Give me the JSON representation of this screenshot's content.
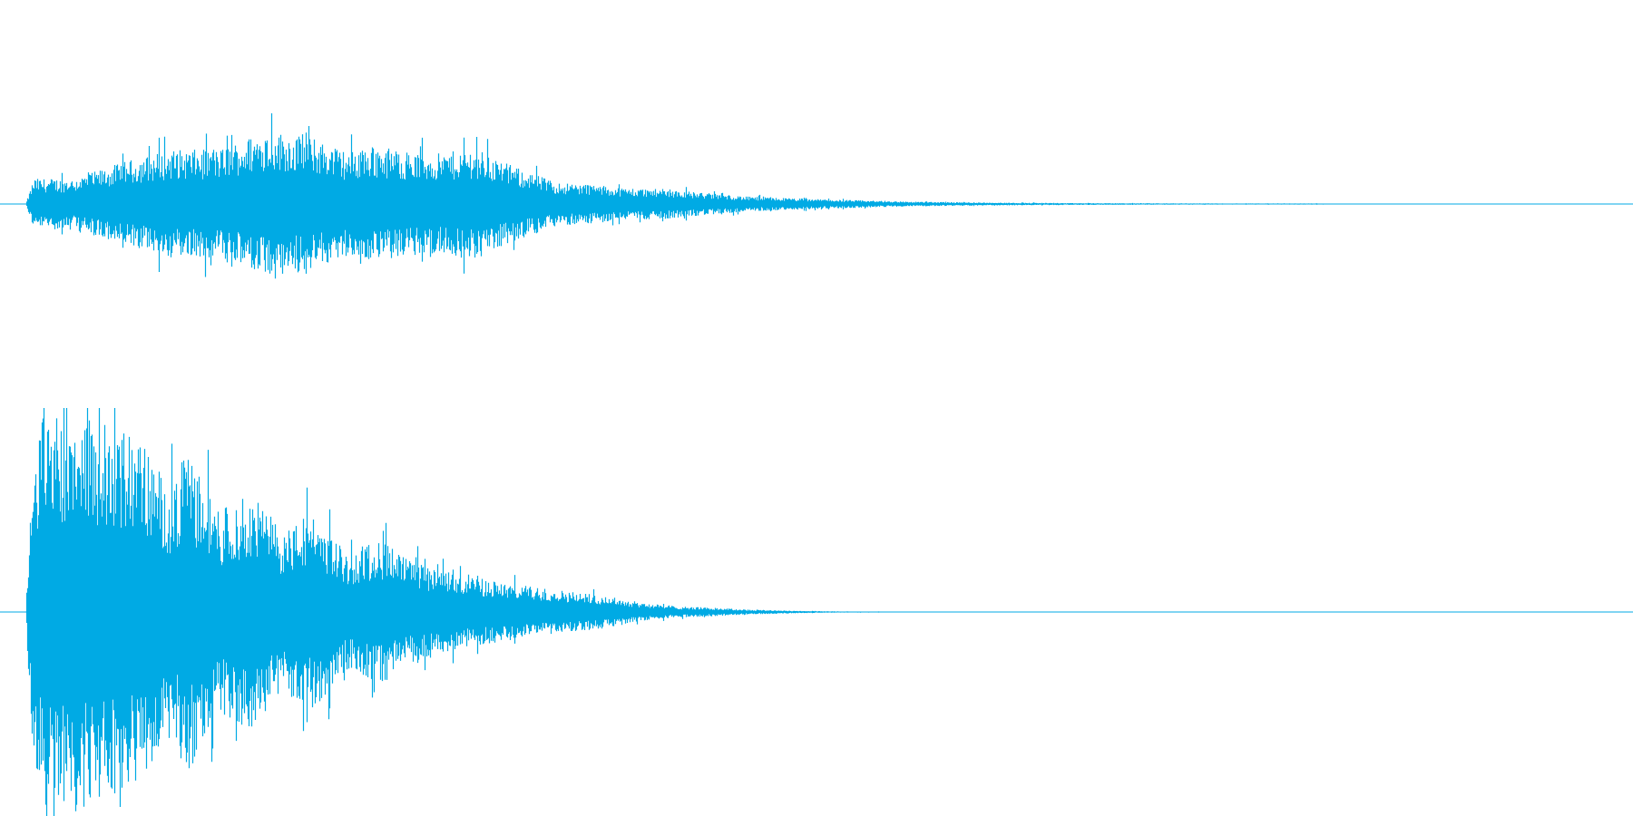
{
  "chart_data": {
    "type": "area",
    "title": "",
    "xlabel": "",
    "ylabel": "",
    "color": "#00aae4",
    "grid": false,
    "legend": "none",
    "xlim": [
      0,
      1
    ],
    "ylim": [
      -1,
      1
    ],
    "series": [
      {
        "channel": 1,
        "envelope_x": [
          0.0,
          0.005,
          0.03,
          0.06,
          0.09,
          0.12,
          0.15,
          0.18,
          0.2,
          0.22,
          0.25,
          0.28,
          0.3,
          0.33,
          0.35,
          0.37,
          0.4,
          0.45,
          0.5,
          0.55,
          0.6,
          0.65,
          0.7,
          0.75,
          0.8,
          0.85,
          0.88,
          0.9,
          0.92,
          0.95,
          1.0
        ],
        "envelope_amp": [
          0.0,
          0.14,
          0.14,
          0.23,
          0.3,
          0.3,
          0.41,
          0.36,
          0.29,
          0.32,
          0.27,
          0.31,
          0.22,
          0.12,
          0.11,
          0.09,
          0.08,
          0.04,
          0.025,
          0.013,
          0.008,
          0.005,
          0.004,
          0.003,
          0.003,
          0.002,
          0.002,
          0.001,
          0.0,
          0.0,
          0.0
        ]
      },
      {
        "channel": 2,
        "envelope_x": [
          0.0,
          0.003,
          0.01,
          0.03,
          0.05,
          0.07,
          0.09,
          0.1,
          0.12,
          0.14,
          0.16,
          0.18,
          0.2,
          0.22,
          0.24,
          0.26,
          0.28,
          0.3,
          0.33,
          0.36,
          0.38,
          0.4,
          0.43,
          0.45,
          0.48,
          0.5,
          0.55,
          0.6,
          0.65,
          1.0
        ],
        "envelope_amp": [
          0.0,
          0.55,
          0.98,
          0.97,
          0.92,
          0.87,
          0.6,
          0.79,
          0.5,
          0.58,
          0.4,
          0.48,
          0.28,
          0.36,
          0.25,
          0.2,
          0.17,
          0.14,
          0.11,
          0.08,
          0.05,
          0.03,
          0.02,
          0.012,
          0.006,
          0.003,
          0.0015,
          0.0008,
          0.0,
          0.0
        ]
      }
    ]
  }
}
